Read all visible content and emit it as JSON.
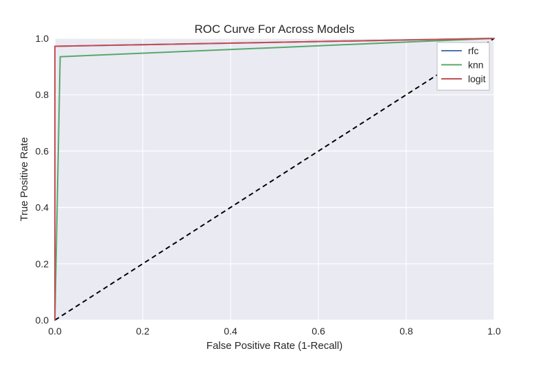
{
  "chart_data": {
    "type": "line",
    "title": "ROC Curve For Across Models",
    "xlabel": "False Positive Rate (1-Recall)",
    "ylabel": "True Positive Rate",
    "xlim": [
      0.0,
      1.0
    ],
    "ylim": [
      0.0,
      1.0
    ],
    "xticks": [
      "0.0",
      "0.2",
      "0.4",
      "0.6",
      "0.8",
      "1.0"
    ],
    "yticks": [
      "0.0",
      "0.2",
      "0.4",
      "0.6",
      "0.8",
      "1.0"
    ],
    "grid": true,
    "legend_position": "top-right",
    "background_color": "#eaeaf2",
    "series": [
      {
        "name": "rfc",
        "color": "#4c72b0",
        "x": [
          0.0,
          0.0,
          1.0
        ],
        "y": [
          0.0,
          0.972,
          1.0
        ]
      },
      {
        "name": "knn",
        "color": "#55a868",
        "x": [
          0.0,
          0.012,
          1.0
        ],
        "y": [
          0.0,
          0.935,
          1.0
        ]
      },
      {
        "name": "logit",
        "color": "#c44e52",
        "x": [
          0.0,
          0.0,
          1.0
        ],
        "y": [
          0.0,
          0.972,
          1.0
        ]
      }
    ],
    "reference_line": {
      "x": [
        0.0,
        1.0
      ],
      "y": [
        0.0,
        1.0
      ],
      "color": "#000000",
      "style": "dashed"
    }
  }
}
